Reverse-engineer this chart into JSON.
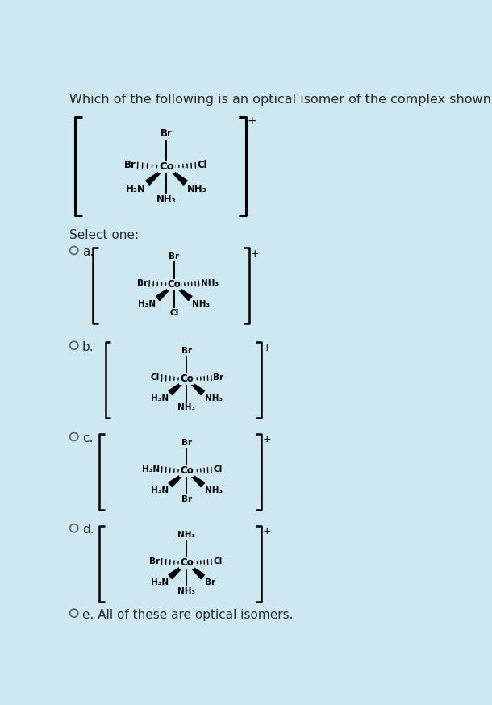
{
  "bg_color": "#cde8f0",
  "title": "Which of the following is an optical isomer of the complex shown below?",
  "title_fontsize": 11.5,
  "select_text": "Select one:",
  "main_complex": {
    "center": "Co",
    "top": "Br",
    "left_hash": "Br",
    "right_dots": "Cl",
    "bottom_left_wedge": "H₃N",
    "bottom_right_wedge": "NH₃",
    "bottom": "NH₃",
    "charge": "+"
  },
  "option_a": {
    "center": "Co",
    "top": "Br",
    "left_hash": "Br",
    "right_dots": "NH₃",
    "bottom_left_wedge": "H₃N",
    "bottom_right_wedge": "NH₃",
    "bottom": "Cl",
    "charge": "+"
  },
  "option_b": {
    "center": "Co",
    "top": "Br",
    "left_hash": "Cl",
    "right_dots": "Br",
    "bottom_left_wedge": "H₃N",
    "bottom_right_wedge": "NH₃",
    "bottom": "NH₃",
    "charge": "+"
  },
  "option_c": {
    "center": "Co",
    "top": "Br",
    "left_hash": "H₃N",
    "right_dots": "Cl",
    "bottom_left_wedge": "H₃N",
    "bottom_right_wedge": "NH₃",
    "bottom": "Br",
    "charge": "+"
  },
  "option_d": {
    "center": "Co",
    "top": "NH₃",
    "left_hash": "Br",
    "right_dots": "Cl",
    "bottom_left_wedge": "H₃N",
    "bottom_right_wedge": "Br",
    "bottom": "NH₃",
    "charge": "+"
  },
  "option_e": "e. All of these are optical isomers."
}
